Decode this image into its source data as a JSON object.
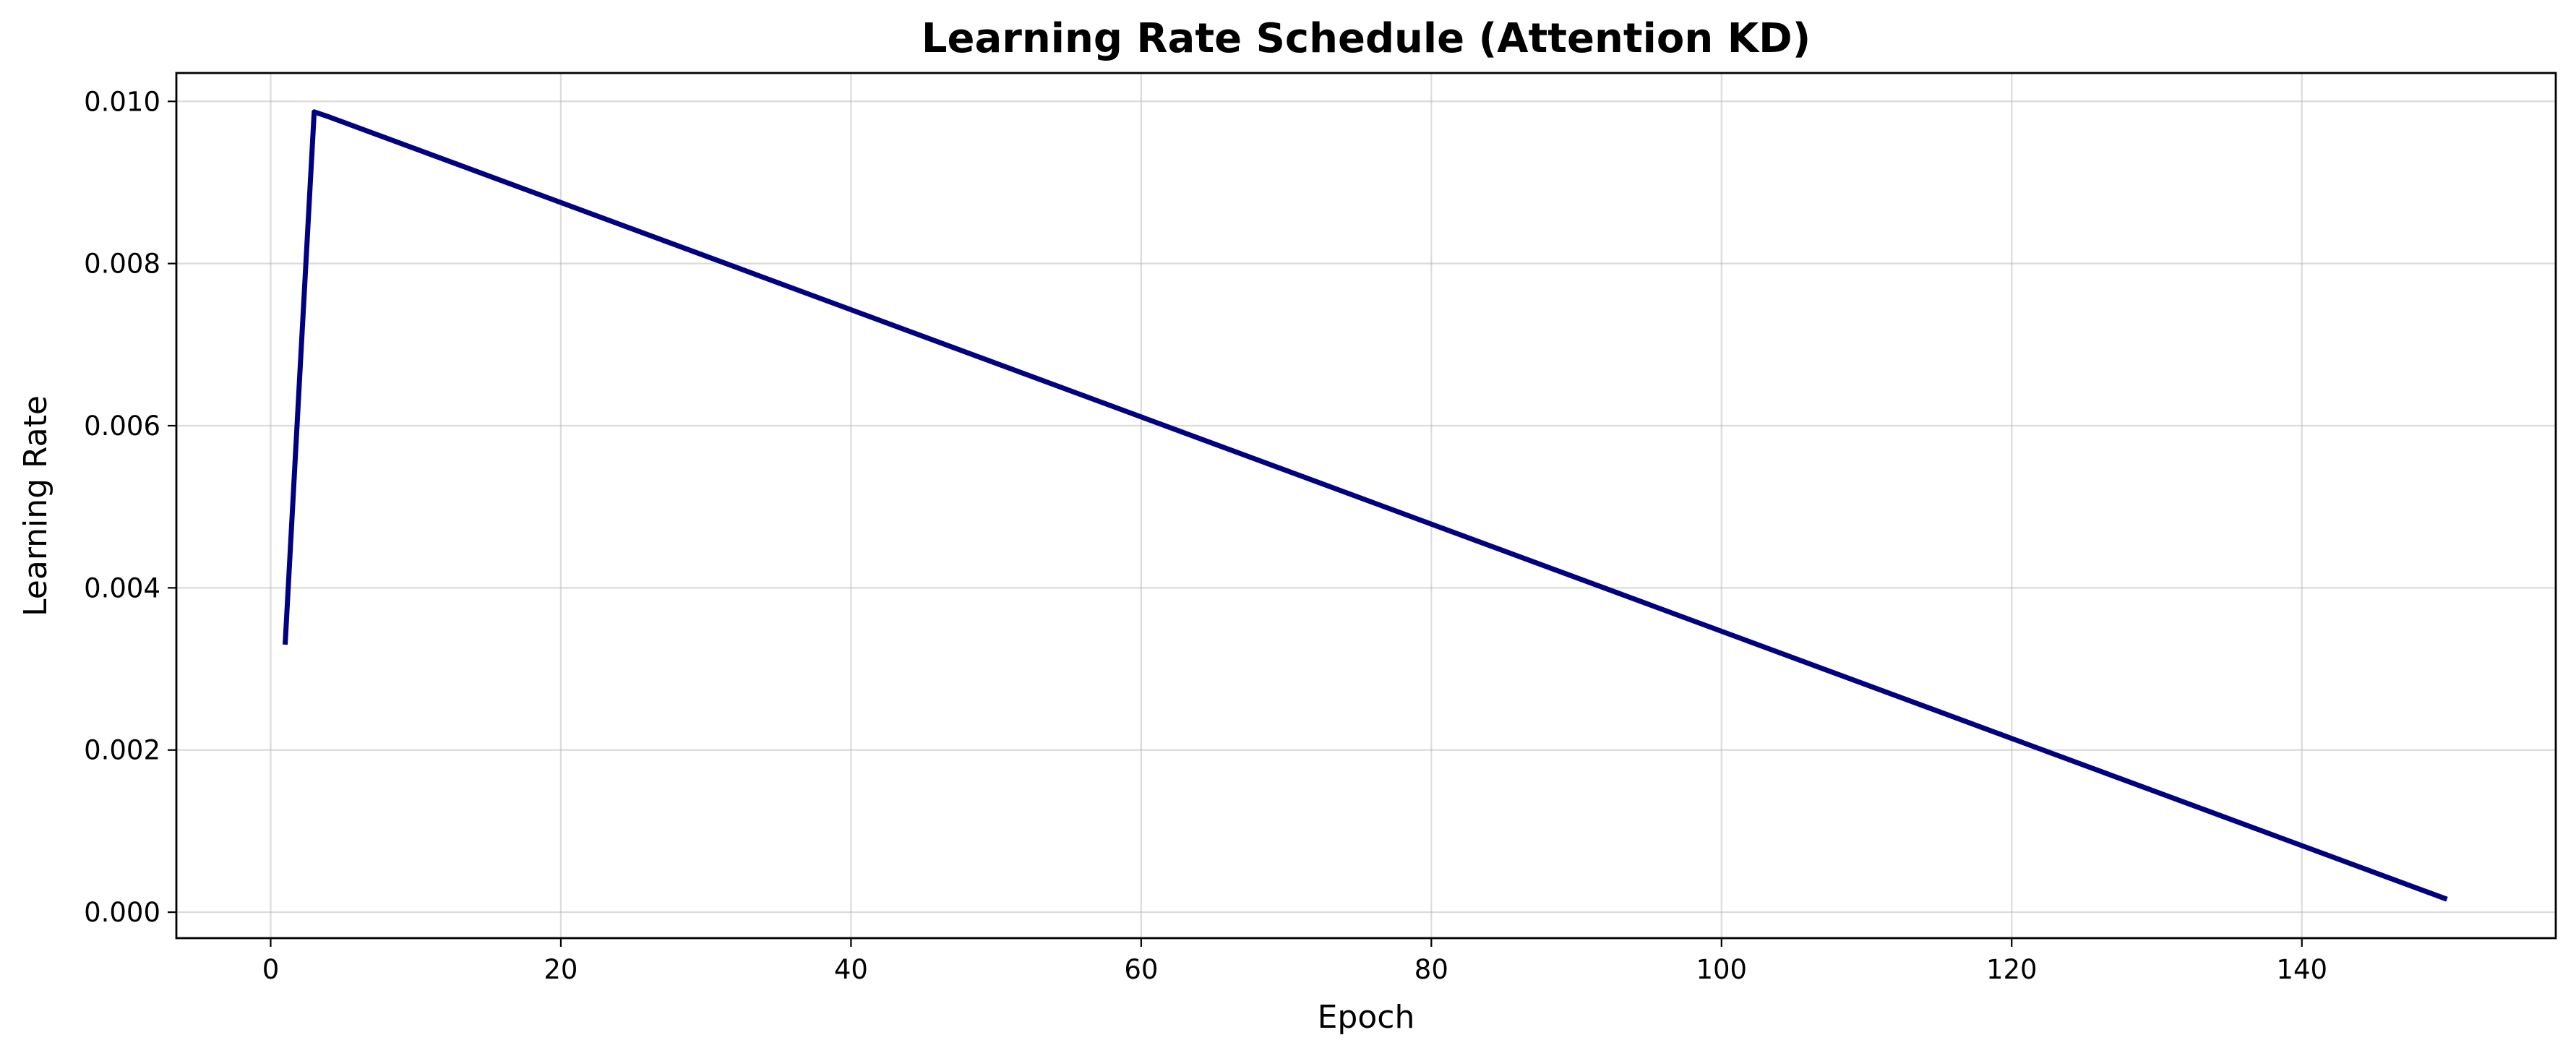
{
  "chart_data": {
    "type": "line",
    "title": "Learning Rate Schedule (Attention KD)",
    "xlabel": "Epoch",
    "ylabel": "Learning Rate",
    "xlim": [
      -6.5,
      157.5
    ],
    "ylim": [
      -0.00032,
      0.01035
    ],
    "x_ticks": [
      0,
      20,
      40,
      60,
      80,
      100,
      120,
      140
    ],
    "x_tick_labels": [
      "0",
      "20",
      "40",
      "60",
      "80",
      "100",
      "120",
      "140"
    ],
    "y_ticks": [
      0.0,
      0.002,
      0.004,
      0.006,
      0.008,
      0.01
    ],
    "y_tick_labels": [
      "0.000",
      "0.002",
      "0.004",
      "0.006",
      "0.008",
      "0.010"
    ],
    "grid": true,
    "legend": "none",
    "series": [
      {
        "color": "#000080",
        "x": [
          1,
          2,
          3,
          4,
          150
        ],
        "y": [
          0.0033,
          0.0066,
          0.00987,
          0.00981,
          0.00016
        ]
      }
    ]
  }
}
